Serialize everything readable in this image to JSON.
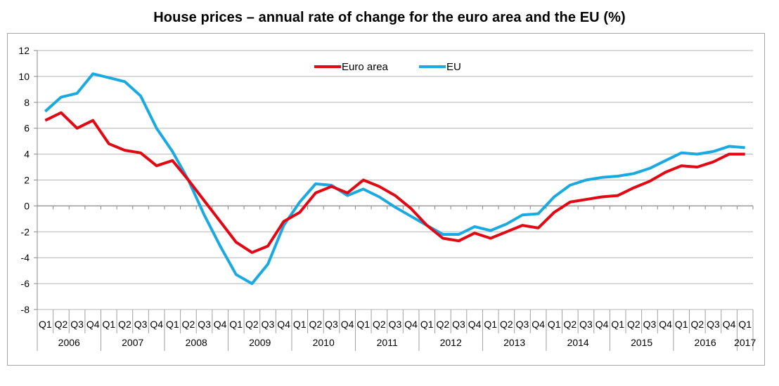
{
  "chart_data": {
    "type": "line",
    "title": "House prices – annual rate of change for the euro area and the EU (%)",
    "xlabel": "",
    "ylabel": "",
    "ylim": [
      -8,
      12
    ],
    "yticks": [
      12,
      10,
      8,
      6,
      4,
      2,
      0,
      -2,
      -4,
      -6,
      -8
    ],
    "grid": true,
    "legend_position": "top-center",
    "quarter_labels": [
      "Q1",
      "Q2",
      "Q3",
      "Q4",
      "Q1",
      "Q2",
      "Q3",
      "Q4",
      "Q1",
      "Q2",
      "Q3",
      "Q4",
      "Q1",
      "Q2",
      "Q3",
      "Q4",
      "Q1",
      "Q2",
      "Q3",
      "Q4",
      "Q1",
      "Q2",
      "Q3",
      "Q4",
      "Q1",
      "Q2",
      "Q3",
      "Q4",
      "Q1",
      "Q2",
      "Q3",
      "Q4",
      "Q1",
      "Q2",
      "Q3",
      "Q4",
      "Q1",
      "Q2",
      "Q3",
      "Q4",
      "Q1",
      "Q2",
      "Q3",
      "Q4",
      "Q1"
    ],
    "years": [
      {
        "label": "2006",
        "quarters": 4
      },
      {
        "label": "2007",
        "quarters": 4
      },
      {
        "label": "2008",
        "quarters": 4
      },
      {
        "label": "2009",
        "quarters": 4
      },
      {
        "label": "2010",
        "quarters": 4
      },
      {
        "label": "2011",
        "quarters": 4
      },
      {
        "label": "2012",
        "quarters": 4
      },
      {
        "label": "2013",
        "quarters": 4
      },
      {
        "label": "2014",
        "quarters": 4
      },
      {
        "label": "2015",
        "quarters": 4
      },
      {
        "label": "2016",
        "quarters": 4
      },
      {
        "label": "2017",
        "quarters": 1
      }
    ],
    "series": [
      {
        "name": "Euro area",
        "color": "#e30613",
        "values": [
          6.6,
          7.2,
          6.0,
          6.6,
          4.8,
          4.3,
          4.1,
          3.1,
          3.5,
          2.0,
          0.4,
          -1.2,
          -2.8,
          -3.6,
          -3.1,
          -1.2,
          -0.5,
          1.0,
          1.5,
          1.0,
          2.0,
          1.5,
          0.8,
          -0.2,
          -1.5,
          -2.5,
          -2.7,
          -2.1,
          -2.5,
          -2.0,
          -1.5,
          -1.7,
          -0.5,
          0.3,
          0.5,
          0.7,
          0.8,
          1.4,
          1.9,
          2.6,
          3.1,
          3.0,
          3.4,
          4.0,
          4.0
        ]
      },
      {
        "name": "EU",
        "color": "#1ba9e1",
        "values": [
          7.3,
          8.4,
          8.7,
          10.2,
          9.9,
          9.6,
          8.5,
          6.0,
          4.2,
          2.0,
          -0.7,
          -3.1,
          -5.3,
          -6.0,
          -4.5,
          -1.5,
          0.3,
          1.7,
          1.6,
          0.8,
          1.3,
          0.7,
          -0.1,
          -0.8,
          -1.5,
          -2.2,
          -2.2,
          -1.6,
          -1.9,
          -1.4,
          -0.7,
          -0.6,
          0.7,
          1.6,
          2.0,
          2.2,
          2.3,
          2.5,
          2.9,
          3.5,
          4.1,
          4.0,
          4.2,
          4.6,
          4.5
        ]
      }
    ]
  }
}
